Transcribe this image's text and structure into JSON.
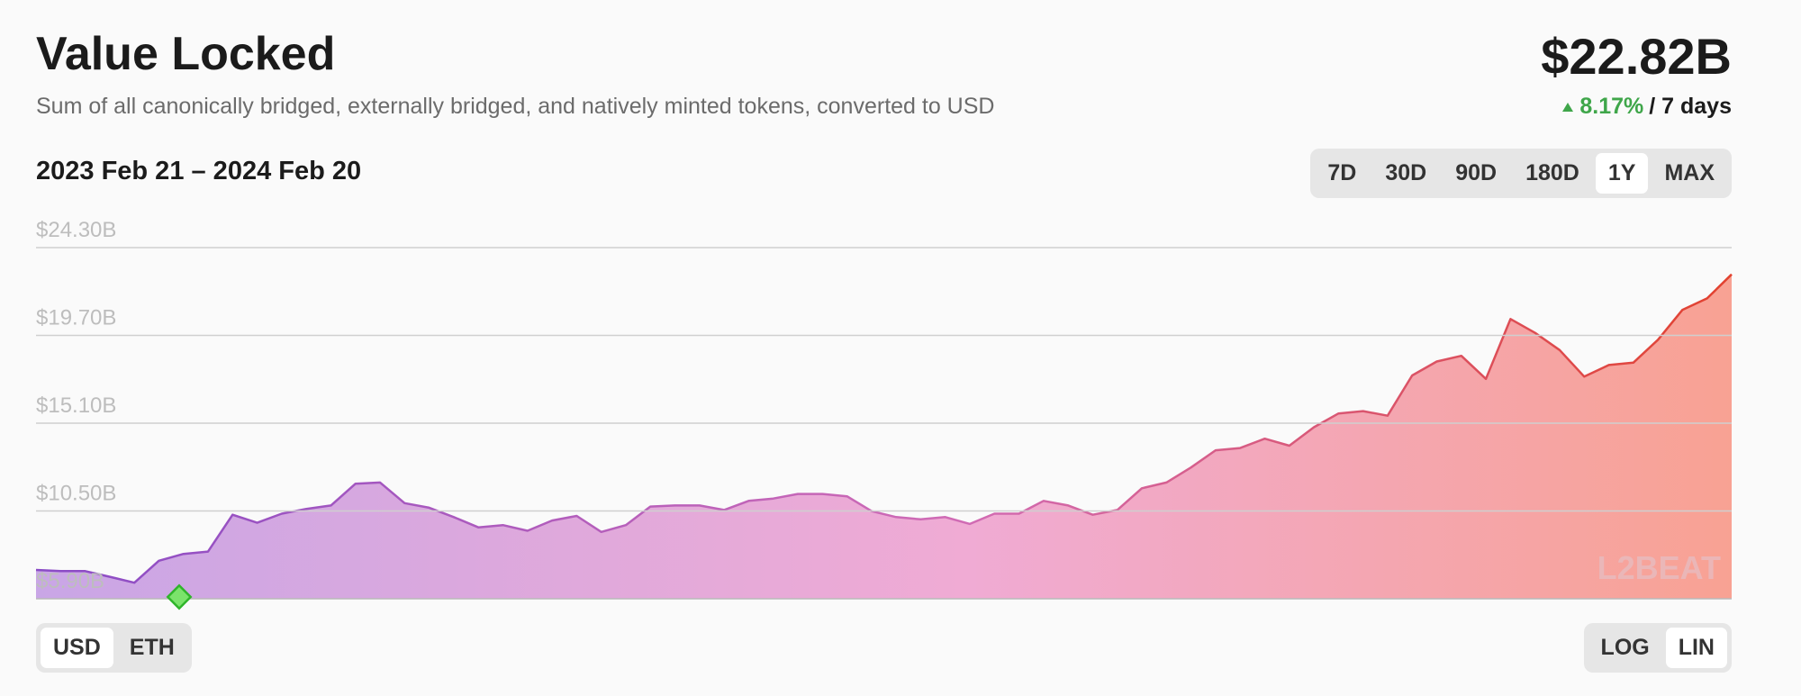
{
  "header": {
    "title": "Value Locked",
    "subtitle": "Sum of all canonically bridged, externally bridged, and natively minted tokens, converted to USD",
    "total": "$22.82B",
    "change": "8.17%",
    "period": "/ 7 days"
  },
  "range_label": "2023 Feb 21 – 2024 Feb 20",
  "time_buttons": [
    "7D",
    "30D",
    "90D",
    "180D",
    "1Y",
    "MAX"
  ],
  "selected_time": "1Y",
  "unit_buttons": [
    "USD",
    "ETH"
  ],
  "selected_unit": "USD",
  "scale_buttons": [
    "LOG",
    "LIN"
  ],
  "selected_scale": "LIN",
  "watermark": "L2BEAT",
  "chart_data": {
    "type": "area",
    "values": [
      7.41,
      7.35,
      7.35,
      7.05,
      6.74,
      7.89,
      8.25,
      8.37,
      10.3,
      9.88,
      10.36,
      10.61,
      10.79,
      11.93,
      11.99,
      10.91,
      10.67,
      10.18,
      9.64,
      9.76,
      9.46,
      10.0,
      10.24,
      9.4,
      9.76,
      10.73,
      10.79,
      10.79,
      10.55,
      11.03,
      11.15,
      11.39,
      11.39,
      11.27,
      10.49,
      10.18,
      10.06,
      10.18,
      9.82,
      10.36,
      10.36,
      11.03,
      10.79,
      10.3,
      10.55,
      11.69,
      11.99,
      12.78,
      13.68,
      13.8,
      14.29,
      13.92,
      14.89,
      15.61,
      15.73,
      15.49,
      17.6,
      18.33,
      18.63,
      17.42,
      20.56,
      19.83,
      18.93,
      17.54,
      18.15,
      18.27,
      19.47,
      21.04,
      21.64,
      22.9
    ],
    "ylim": [
      5.9,
      24.3
    ],
    "yticks": [
      {
        "value": 5.9,
        "label": "$5.90B"
      },
      {
        "value": 10.5,
        "label": "$10.50B"
      },
      {
        "value": 15.1,
        "label": "$15.10B"
      },
      {
        "value": 19.7,
        "label": "$19.70B"
      },
      {
        "value": 24.3,
        "label": "$24.30B"
      }
    ],
    "grid": true
  }
}
